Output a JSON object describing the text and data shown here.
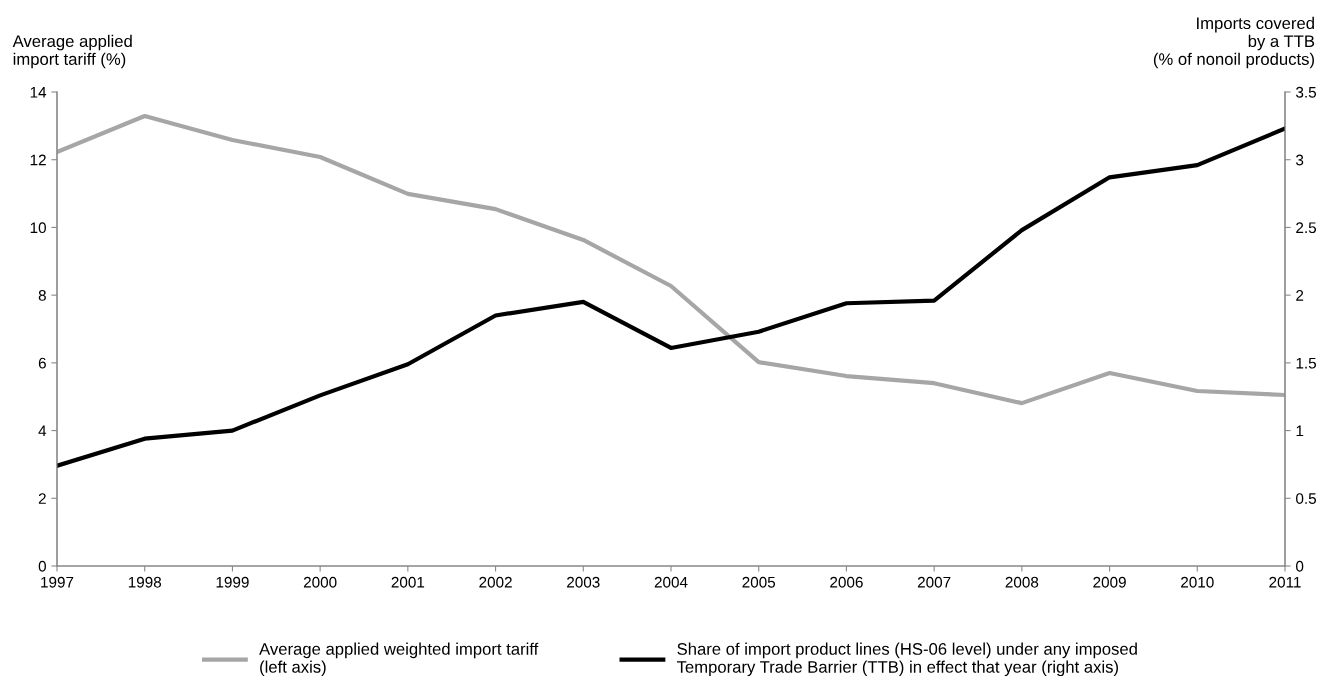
{
  "chart_data": {
    "type": "line",
    "ylabel": "Average applied\nimport tariff (%)",
    "y2label": "Imports covered\nby a TTB\n(% of nonoil products)",
    "x": [
      1997,
      1998,
      1999,
      2000,
      2001,
      2002,
      2003,
      2004,
      2005,
      2006,
      2007,
      2008,
      2009,
      2010,
      2011
    ],
    "xlim": [
      1997,
      2011
    ],
    "xticks": [
      1997,
      1998,
      1999,
      2000,
      2001,
      2002,
      2003,
      2004,
      2005,
      2006,
      2007,
      2008,
      2009,
      2010,
      2011
    ],
    "ylim": [
      0,
      14
    ],
    "yticks": [
      0,
      2,
      4,
      6,
      8,
      10,
      12,
      14
    ],
    "y2lim": [
      0,
      3.5
    ],
    "y2ticks": [
      0,
      0.5,
      1,
      1.5,
      2,
      2.5,
      3,
      3.5
    ],
    "series": [
      {
        "name": "Average applied weighted import tariff\n(left axis)",
        "color": "#a6a6a6",
        "values": [
          12.23,
          13.29,
          12.58,
          12.08,
          10.99,
          10.54,
          9.63,
          8.27,
          6.02,
          5.61,
          5.4,
          4.81,
          5.7,
          5.17,
          5.05
        ]
      },
      {
        "name": "Share of import product lines (HS-06 level) under any imposed\nTemporary Trade Barrier (TTB) in effect that year (right axis)",
        "color": "#000000",
        "axis": "y2",
        "values": [
          0.74,
          0.94,
          1.0,
          1.26,
          1.49,
          1.85,
          1.95,
          1.61,
          1.73,
          1.94,
          1.96,
          2.48,
          2.87,
          2.96,
          3.23
        ]
      }
    ],
    "grid": false,
    "legend": "bottom",
    "marker": "none",
    "line_style": "solid"
  }
}
